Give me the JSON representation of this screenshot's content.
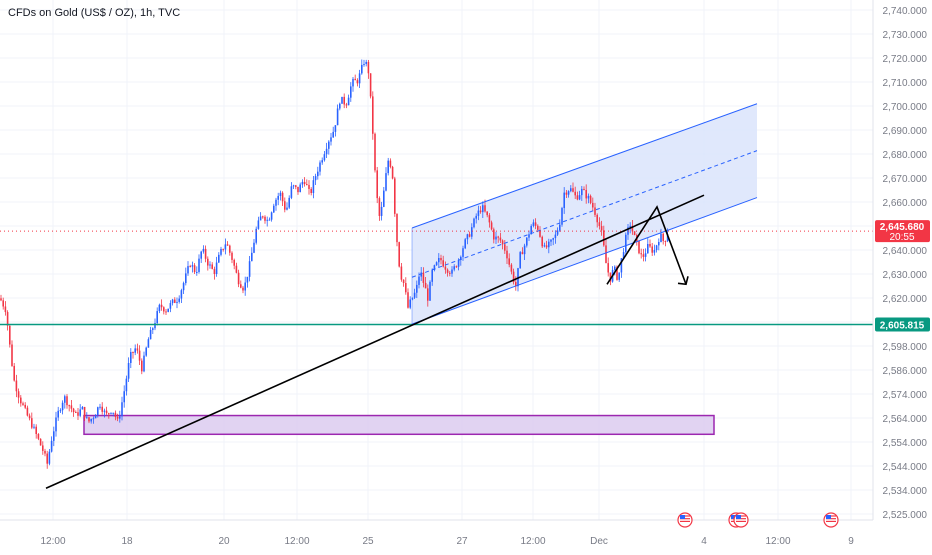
{
  "header": {
    "symbol_title": "CFDs on Gold (US$ / OZ), 1h, TVC"
  },
  "colors": {
    "up": "#2962ff",
    "down": "#f23645",
    "channel_line": "#2962ff",
    "channel_fill": "#dbe4fb",
    "support_line": "#089981",
    "zone_fill": "#d9c8ef",
    "zone_border": "#9c27b0",
    "trendline": "#000000",
    "price_tag": "#f23645",
    "support_tag": "#089981",
    "grid": "#f0f3fa"
  },
  "price_tag": {
    "value": "2,645.680",
    "countdown": "20:55"
  },
  "support_tag": {
    "value": "2,605.815"
  },
  "event_icons": [
    "us-flag-icon",
    "us-flag-icon",
    "us-flag-icon",
    "us-flag-icon"
  ],
  "chart_data": {
    "type": "candlestick",
    "title": "CFDs on Gold (US$ / OZ), 1h, TVC",
    "yaxis": {
      "min": 2522,
      "max": 2742,
      "ticks": [
        "2,740.000",
        "2,730.000",
        "2,720.000",
        "2,710.000",
        "2,700.000",
        "2,690.000",
        "2,680.000",
        "2,670.000",
        "2,660.000",
        "2,650.000",
        "2,640.000",
        "2,630.000",
        "2,620.000",
        "2,610.000",
        "2,598.000",
        "2,586.000",
        "2,574.000",
        "2,564.000",
        "2,554.000",
        "2,544.000",
        "2,534.000",
        "2,525.000"
      ]
    },
    "xaxis": {
      "ticks": [
        "12:00",
        "18",
        "20",
        "12:00",
        "25",
        "27",
        "12:00",
        "Dec",
        "4",
        "12:00",
        "9"
      ]
    },
    "price_path": [
      [
        0,
        2617
      ],
      [
        6,
        2612
      ],
      [
        10,
        2596
      ],
      [
        14,
        2582
      ],
      [
        20,
        2574
      ],
      [
        26,
        2568
      ],
      [
        32,
        2563
      ],
      [
        38,
        2557
      ],
      [
        44,
        2551
      ],
      [
        47,
        2546
      ],
      [
        52,
        2558
      ],
      [
        58,
        2568
      ],
      [
        64,
        2575
      ],
      [
        70,
        2571
      ],
      [
        76,
        2567
      ],
      [
        82,
        2570
      ],
      [
        88,
        2564
      ],
      [
        94,
        2567
      ],
      [
        100,
        2572
      ],
      [
        106,
        2567
      ],
      [
        112,
        2570
      ],
      [
        118,
        2564
      ],
      [
        124,
        2577
      ],
      [
        130,
        2592
      ],
      [
        136,
        2596
      ],
      [
        142,
        2587
      ],
      [
        148,
        2599
      ],
      [
        154,
        2606
      ],
      [
        160,
        2614
      ],
      [
        166,
        2612
      ],
      [
        172,
        2615
      ],
      [
        178,
        2617
      ],
      [
        184,
        2624
      ],
      [
        190,
        2632
      ],
      [
        196,
        2628
      ],
      [
        202,
        2638
      ],
      [
        208,
        2632
      ],
      [
        214,
        2628
      ],
      [
        220,
        2636
      ],
      [
        226,
        2641
      ],
      [
        232,
        2634
      ],
      [
        238,
        2625
      ],
      [
        244,
        2621
      ],
      [
        250,
        2632
      ],
      [
        256,
        2646
      ],
      [
        262,
        2653
      ],
      [
        268,
        2650
      ],
      [
        274,
        2658
      ],
      [
        280,
        2662
      ],
      [
        286,
        2654
      ],
      [
        292,
        2665
      ],
      [
        298,
        2663
      ],
      [
        304,
        2668
      ],
      [
        310,
        2661
      ],
      [
        316,
        2670
      ],
      [
        322,
        2677
      ],
      [
        328,
        2684
      ],
      [
        334,
        2689
      ],
      [
        340,
        2702
      ],
      [
        346,
        2700
      ],
      [
        352,
        2709
      ],
      [
        358,
        2710
      ],
      [
        364,
        2718
      ],
      [
        368,
        2716
      ],
      [
        372,
        2694
      ],
      [
        376,
        2663
      ],
      [
        380,
        2650
      ],
      [
        384,
        2663
      ],
      [
        388,
        2676
      ],
      [
        392,
        2673
      ],
      [
        396,
        2646
      ],
      [
        400,
        2628
      ],
      [
        404,
        2623
      ],
      [
        408,
        2613
      ],
      [
        412,
        2617
      ],
      [
        416,
        2620
      ],
      [
        420,
        2629
      ],
      [
        424,
        2623
      ],
      [
        428,
        2617
      ],
      [
        432,
        2628
      ],
      [
        436,
        2631
      ],
      [
        440,
        2634
      ],
      [
        446,
        2630
      ],
      [
        452,
        2628
      ],
      [
        458,
        2633
      ],
      [
        464,
        2640
      ],
      [
        470,
        2645
      ],
      [
        476,
        2652
      ],
      [
        482,
        2656
      ],
      [
        488,
        2651
      ],
      [
        494,
        2643
      ],
      [
        500,
        2642
      ],
      [
        506,
        2637
      ],
      [
        512,
        2627
      ],
      [
        516,
        2622
      ],
      [
        520,
        2635
      ],
      [
        526,
        2641
      ],
      [
        532,
        2649
      ],
      [
        538,
        2647
      ],
      [
        544,
        2638
      ],
      [
        550,
        2640
      ],
      [
        556,
        2644
      ],
      [
        560,
        2650
      ],
      [
        564,
        2662
      ],
      [
        570,
        2664
      ],
      [
        576,
        2660
      ],
      [
        582,
        2663
      ],
      [
        588,
        2660
      ],
      [
        594,
        2655
      ],
      [
        598,
        2650
      ],
      [
        602,
        2644
      ],
      [
        606,
        2632
      ],
      [
        610,
        2625
      ],
      [
        614,
        2630
      ],
      [
        618,
        2625
      ],
      [
        622,
        2635
      ],
      [
        626,
        2643
      ],
      [
        630,
        2649
      ],
      [
        636,
        2641
      ],
      [
        642,
        2634
      ],
      [
        648,
        2639
      ],
      [
        654,
        2637
      ],
      [
        660,
        2644
      ],
      [
        664,
        2641
      ],
      [
        668,
        2645.68
      ]
    ],
    "last_price": 2645.68,
    "support_level": 2605.815,
    "annotations": {
      "channel": {
        "upper": [
          [
            412,
            2647
          ],
          [
            757,
            2700
          ]
        ],
        "lower": [
          [
            412,
            2606
          ],
          [
            757,
            2660
          ]
        ],
        "midline": [
          [
            412,
            2626
          ],
          [
            757,
            2680
          ]
        ]
      },
      "trendline": [
        [
          46,
          2536
        ],
        [
          704,
          2661
        ]
      ],
      "demand_zone": {
        "x0": 84,
        "x1": 714,
        "top": 2567,
        "bottom": 2559
      },
      "breakout_path": [
        [
          607,
          2623
        ],
        [
          657,
          2656
        ],
        [
          686,
          2623
        ]
      ]
    }
  }
}
